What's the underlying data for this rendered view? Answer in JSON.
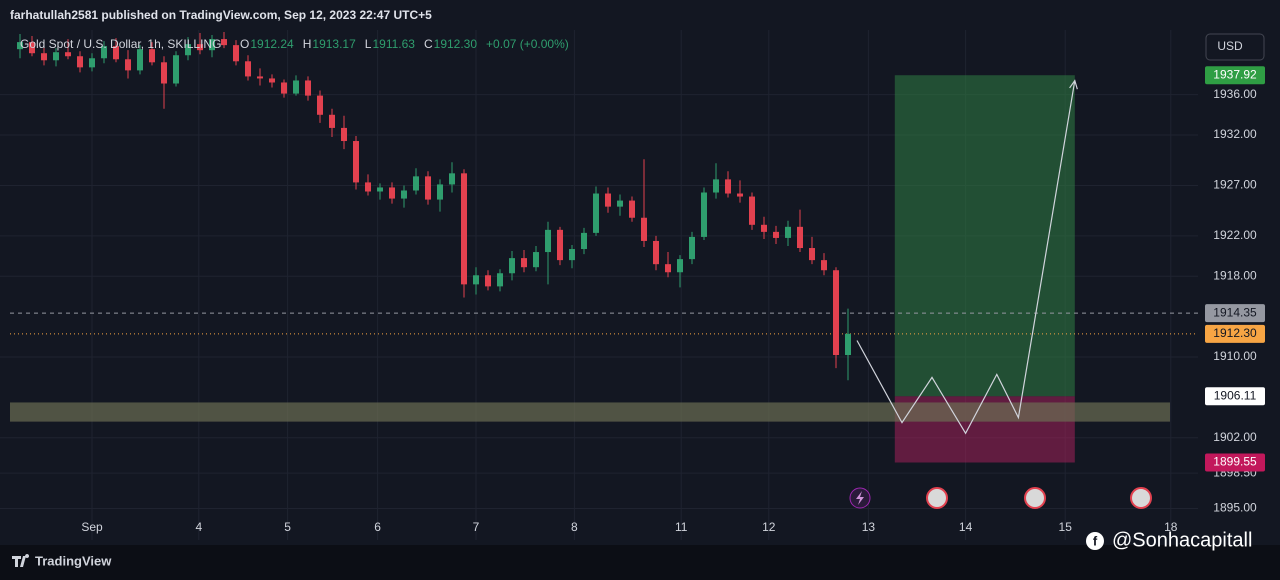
{
  "header": {
    "published": "farhatullah2581 published on TradingView.com, Sep 12, 2023 22:47 UTC+5",
    "symbol": "Gold Spot / U.S. Dollar, 1h, SKILLING",
    "ohlc": [
      {
        "key": "O",
        "text": "1912.24"
      },
      {
        "key": "H",
        "text": "1913.17"
      },
      {
        "key": "L",
        "text": "1911.63"
      },
      {
        "key": "C",
        "text": "1912.30"
      }
    ],
    "change": "+0.07 (+0.00%)"
  },
  "currency": "USD",
  "footer": {
    "brand": "TradingView",
    "handle": "@Sonhacapitall"
  },
  "chart_data": {
    "type": "candlestick",
    "up_color": "#2f9e6e",
    "down_color": "#e2414f",
    "open": [
      1940.5,
      1941.2,
      1940.1,
      1939.4,
      1940.2,
      1939.8,
      1938.7,
      1939.6,
      1940.8,
      1939.5,
      1938.4,
      1940.5,
      1939.2,
      1937.1,
      1939.9,
      1941.0,
      1940.4,
      1941.5,
      1940.9,
      1939.3,
      1937.8,
      1937.6,
      1937.2,
      1936.1,
      1937.4,
      1935.9,
      1934.0,
      1932.7,
      1931.4,
      1927.3,
      1926.4,
      1926.8,
      1925.7,
      1926.5,
      1927.9,
      1925.6,
      1927.1,
      1928.2,
      1917.2,
      1918.1,
      1917.0,
      1918.3,
      1919.8,
      1918.9,
      1920.4,
      1922.6,
      1919.6,
      1920.7,
      1922.3,
      1926.2,
      1924.9,
      1925.5,
      1923.8,
      1921.5,
      1919.2,
      1918.4,
      1919.7,
      1921.9,
      1926.3,
      1927.6,
      1926.2,
      1925.9,
      1923.1,
      1922.4,
      1921.8,
      1922.9,
      1920.8,
      1919.6,
      1918.6,
      1910.2
    ],
    "high": [
      1942.0,
      1941.8,
      1941.0,
      1940.6,
      1941.5,
      1940.3,
      1940.1,
      1941.3,
      1941.6,
      1940.4,
      1940.9,
      1941.2,
      1939.8,
      1940.3,
      1941.7,
      1942.1,
      1941.9,
      1942.2,
      1941.4,
      1939.9,
      1938.6,
      1938.0,
      1937.5,
      1937.9,
      1937.8,
      1936.4,
      1934.6,
      1933.9,
      1931.9,
      1928.1,
      1927.2,
      1927.3,
      1927.0,
      1928.7,
      1928.4,
      1927.6,
      1929.3,
      1928.6,
      1918.9,
      1918.6,
      1918.7,
      1920.5,
      1920.6,
      1921.0,
      1923.4,
      1922.9,
      1921.1,
      1922.8,
      1926.9,
      1926.8,
      1926.1,
      1925.9,
      1929.6,
      1922.0,
      1920.4,
      1920.1,
      1922.4,
      1926.8,
      1929.2,
      1928.4,
      1927.5,
      1926.3,
      1923.9,
      1923.0,
      1923.5,
      1924.6,
      1921.9,
      1920.3,
      1918.9,
      1914.8
    ],
    "low": [
      1939.6,
      1939.8,
      1938.9,
      1938.8,
      1939.5,
      1938.2,
      1938.3,
      1939.1,
      1939.2,
      1937.6,
      1938.0,
      1938.9,
      1934.6,
      1936.8,
      1939.4,
      1940.0,
      1939.7,
      1940.6,
      1938.9,
      1937.4,
      1936.9,
      1936.7,
      1935.7,
      1935.9,
      1935.4,
      1933.2,
      1931.8,
      1930.6,
      1926.6,
      1926.0,
      1925.6,
      1925.2,
      1924.8,
      1926.1,
      1925.1,
      1924.4,
      1926.3,
      1915.9,
      1916.2,
      1916.6,
      1916.5,
      1917.6,
      1918.4,
      1918.5,
      1917.2,
      1919.1,
      1918.8,
      1920.2,
      1922.0,
      1924.3,
      1924.0,
      1923.4,
      1920.9,
      1918.6,
      1917.9,
      1916.9,
      1919.2,
      1921.6,
      1925.7,
      1925.8,
      1925.3,
      1922.6,
      1921.7,
      1921.2,
      1921.0,
      1920.4,
      1919.2,
      1918.1,
      1908.9,
      1907.7
    ],
    "close": [
      1941.2,
      1940.1,
      1939.4,
      1940.2,
      1939.8,
      1938.7,
      1939.6,
      1940.8,
      1939.5,
      1938.4,
      1940.5,
      1939.2,
      1937.1,
      1939.9,
      1941.0,
      1940.4,
      1941.5,
      1940.9,
      1939.3,
      1937.8,
      1937.6,
      1937.2,
      1936.1,
      1937.4,
      1935.9,
      1934.0,
      1932.7,
      1931.4,
      1927.3,
      1926.4,
      1926.8,
      1925.7,
      1926.5,
      1927.9,
      1925.6,
      1927.1,
      1928.2,
      1917.2,
      1918.1,
      1917.0,
      1918.3,
      1919.8,
      1918.9,
      1920.4,
      1922.6,
      1919.6,
      1920.7,
      1922.3,
      1926.2,
      1924.9,
      1925.5,
      1923.8,
      1921.5,
      1919.2,
      1918.4,
      1919.7,
      1921.9,
      1926.3,
      1927.6,
      1926.2,
      1925.9,
      1923.1,
      1922.4,
      1921.8,
      1922.9,
      1920.8,
      1919.6,
      1918.6,
      1910.2,
      1912.3
    ],
    "xlim": [
      -1,
      96.5
    ],
    "xticks": [
      {
        "value": 6,
        "label": "Sep"
      },
      14.9,
      22.3,
      29.8,
      38,
      46.2,
      55.1,
      62.4,
      70.7,
      78.8,
      87.1,
      95.9
    ],
    "xtick_labels": [
      "Sep",
      "4",
      "5",
      "6",
      "7",
      "8",
      "11",
      "12",
      "13",
      "14",
      "15",
      "18"
    ],
    "ylim": [
      1894.35,
      1942.4
    ],
    "yticks": [
      {
        "value": 1936,
        "label": "1936.00"
      },
      {
        "value": 1932,
        "label": "1932.00"
      },
      {
        "value": 1927,
        "label": "1927.00"
      },
      {
        "value": 1922,
        "label": "1922.00"
      },
      {
        "value": 1918,
        "label": "1918.00"
      },
      {
        "value": 1910,
        "label": "1910.00"
      },
      {
        "value": 1902,
        "label": "1902.00"
      },
      {
        "value": 1898.5,
        "label": "1898.50"
      },
      {
        "value": 1895,
        "label": "1895.00"
      }
    ],
    "grid": true,
    "zone": {
      "ylim": [
        1903.6,
        1905.5
      ],
      "color": "#6b6e52"
    },
    "position": {
      "x": [
        72.9,
        87.9
      ],
      "target": 1937.92,
      "entry": 1906.11,
      "stop": 1899.55,
      "target_color": "#2f7d43",
      "stop_color": "#b0215e"
    },
    "price_lines": [
      {
        "value": 1914.35,
        "color": "#9598a1",
        "text_color": "#131722",
        "dash": "4 4"
      },
      {
        "value": 1912.3,
        "label": "1912.30",
        "color": "#f7a544",
        "text_color": "#131722",
        "dash": "1 3"
      }
    ],
    "projection": {
      "x": [
        69.75,
        73.5,
        76,
        78.8,
        81.4,
        83.2,
        87.9
      ],
      "y": [
        1911.64,
        1903.5,
        1907.98,
        1902.44,
        1908.28,
        1904.0,
        1937.39
      ],
      "color": "#d1d4dc"
    }
  }
}
